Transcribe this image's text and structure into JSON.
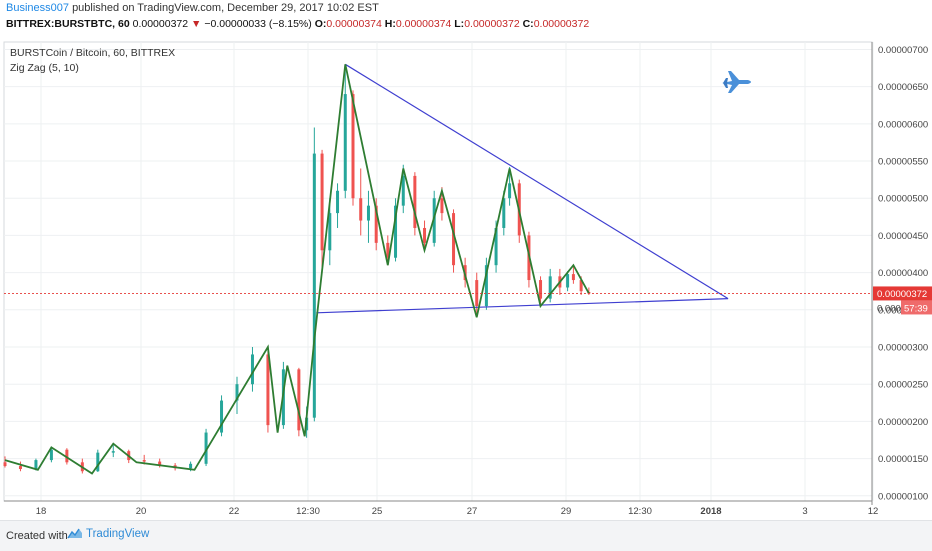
{
  "header": {
    "author": "Business007",
    "published": "published on TradingView.com, December 29, 2017 10:02 EST",
    "symbol_line": "BITTREX:BURSTBTC, 60",
    "last": "0.00000372",
    "arrow": "▼",
    "change": "−0.00000033 (−8.15%)",
    "o_label": "O:",
    "o_val": "0.00000374",
    "h_label": "H:",
    "h_val": "0.00000374",
    "l_label": "L:",
    "l_val": "0.00000372",
    "c_label": "C:",
    "c_val": "0.00000372"
  },
  "legend": {
    "title": "BURSTCoin / Bitcoin, 60, BITTREX",
    "indicator": "Zig Zag (5, 10)"
  },
  "price_badge": "0.00000372",
  "countdown_badge": "57:39",
  "price_badge_partial": "0.000",
  "footer": {
    "created": "Created with",
    "brand": "TradingView"
  },
  "icons": [
    "jet-fighter-icon",
    "tradingview-logo-icon"
  ],
  "colors": {
    "up": "#26a69a",
    "down": "#ef5350",
    "zigzag": "#2e7d32",
    "trendline": "#3f3fd0",
    "last_price": "#e53935"
  },
  "chart_data": {
    "type": "candlestick",
    "y_axis": {
      "ticks": [
        "0.00000100",
        "0.00000150",
        "0.00000200",
        "0.00000250",
        "0.00000300",
        "0.00000350",
        "0.00000400",
        "0.00000450",
        "0.00000500",
        "0.00000550",
        "0.00000600",
        "0.00000650",
        "0.00000700"
      ],
      "ylim": [
        9.3e-07,
        7.1e-06
      ]
    },
    "x_axis": {
      "ticks": [
        "18",
        "20",
        "22",
        "12:30",
        "25",
        "27",
        "29",
        "12:30",
        "2018",
        "3",
        "12"
      ]
    },
    "last_price": 3.72e-06,
    "zigzag": [
      {
        "t": "2017-12-17 00:00",
        "p": 1.48e-06
      },
      {
        "t": "2017-12-17 17:00",
        "p": 1.35e-06
      },
      {
        "t": "2017-12-18 00:00",
        "p": 1.65e-06
      },
      {
        "t": "2017-12-18 21:00",
        "p": 1.3e-06
      },
      {
        "t": "2017-12-19 08:00",
        "p": 1.7e-06
      },
      {
        "t": "2017-12-19 20:00",
        "p": 1.45e-06
      },
      {
        "t": "2017-12-21 02:00",
        "p": 1.35e-06
      },
      {
        "t": "2017-12-22 16:00",
        "p": 3e-06
      },
      {
        "t": "2017-12-22 21:00",
        "p": 1.85e-06
      },
      {
        "t": "2017-12-23 02:00",
        "p": 2.75e-06
      },
      {
        "t": "2017-12-23 11:00",
        "p": 1.8e-06
      },
      {
        "t": "2017-12-23 16:00",
        "p": 3.1e-06
      },
      {
        "t": "2017-12-24 08:00",
        "p": 6.8e-06
      },
      {
        "t": "2017-12-25 06:00",
        "p": 4.1e-06
      },
      {
        "t": "2017-12-25 14:00",
        "p": 5.4e-06
      },
      {
        "t": "2017-12-26 01:00",
        "p": 4.3e-06
      },
      {
        "t": "2017-12-26 10:00",
        "p": 5.1e-06
      },
      {
        "t": "2017-12-27 04:00",
        "p": 3.4e-06
      },
      {
        "t": "2017-12-27 21:00",
        "p": 5.4e-06
      },
      {
        "t": "2017-12-28 13:00",
        "p": 3.55e-06
      },
      {
        "t": "2017-12-29 06:00",
        "p": 4.1e-06
      },
      {
        "t": "2017-12-29 14:00",
        "p": 3.72e-06
      }
    ],
    "trendlines": [
      {
        "from": {
          "t": "2017-12-24 08:00",
          "p": 6.8e-06
        },
        "to": {
          "t": "2018-01-01 14:00",
          "p": 3.65e-06
        }
      },
      {
        "from": {
          "t": "2017-12-23 17:00",
          "p": 3.46e-06
        },
        "to": {
          "t": "2018-01-01 14:00",
          "p": 3.65e-06
        }
      }
    ],
    "candles": [
      {
        "t": "2017-12-17 00:00",
        "o": 1.45,
        "h": 1.53,
        "l": 1.38,
        "c": 1.4
      },
      {
        "t": "2017-12-17 08:00",
        "o": 1.4,
        "h": 1.46,
        "l": 1.33,
        "c": 1.36
      },
      {
        "t": "2017-12-17 16:00",
        "o": 1.36,
        "h": 1.5,
        "l": 1.34,
        "c": 1.48
      },
      {
        "t": "2017-12-18 00:00",
        "o": 1.48,
        "h": 1.66,
        "l": 1.45,
        "c": 1.62
      },
      {
        "t": "2017-12-18 08:00",
        "o": 1.62,
        "h": 1.64,
        "l": 1.42,
        "c": 1.45
      },
      {
        "t": "2017-12-18 16:00",
        "o": 1.45,
        "h": 1.5,
        "l": 1.3,
        "c": 1.33
      },
      {
        "t": "2017-12-19 00:00",
        "o": 1.33,
        "h": 1.62,
        "l": 1.32,
        "c": 1.58
      },
      {
        "t": "2017-12-19 08:00",
        "o": 1.58,
        "h": 1.7,
        "l": 1.52,
        "c": 1.6
      },
      {
        "t": "2017-12-19 16:00",
        "o": 1.6,
        "h": 1.62,
        "l": 1.44,
        "c": 1.48
      },
      {
        "t": "2017-12-20 00:00",
        "o": 1.48,
        "h": 1.55,
        "l": 1.42,
        "c": 1.46
      },
      {
        "t": "2017-12-20 08:00",
        "o": 1.46,
        "h": 1.5,
        "l": 1.38,
        "c": 1.41
      },
      {
        "t": "2017-12-20 16:00",
        "o": 1.41,
        "h": 1.44,
        "l": 1.34,
        "c": 1.37
      },
      {
        "t": "2017-12-21 00:00",
        "o": 1.37,
        "h": 1.46,
        "l": 1.33,
        "c": 1.43
      },
      {
        "t": "2017-12-21 08:00",
        "o": 1.43,
        "h": 1.9,
        "l": 1.4,
        "c": 1.85
      },
      {
        "t": "2017-12-21 16:00",
        "o": 1.85,
        "h": 2.35,
        "l": 1.8,
        "c": 2.28
      },
      {
        "t": "2017-12-22 00:00",
        "o": 2.28,
        "h": 2.6,
        "l": 2.1,
        "c": 2.5
      },
      {
        "t": "2017-12-22 08:00",
        "o": 2.5,
        "h": 3.0,
        "l": 2.4,
        "c": 2.9
      },
      {
        "t": "2017-12-22 16:00",
        "o": 2.9,
        "h": 2.95,
        "l": 1.85,
        "c": 1.95
      },
      {
        "t": "2017-12-23 00:00",
        "o": 1.95,
        "h": 2.8,
        "l": 1.9,
        "c": 2.7
      },
      {
        "t": "2017-12-23 08:00",
        "o": 2.7,
        "h": 2.72,
        "l": 1.8,
        "c": 1.88
      },
      {
        "t": "2017-12-23 12:00",
        "o": 1.88,
        "h": 2.2,
        "l": 1.78,
        "c": 2.05
      },
      {
        "t": "2017-12-23 16:00",
        "o": 2.05,
        "h": 5.95,
        "l": 2.0,
        "c": 5.6
      },
      {
        "t": "2017-12-23 20:00",
        "o": 5.6,
        "h": 5.65,
        "l": 4.0,
        "c": 4.3
      },
      {
        "t": "2017-12-24 00:00",
        "o": 4.3,
        "h": 5.0,
        "l": 4.1,
        "c": 4.8
      },
      {
        "t": "2017-12-24 04:00",
        "o": 4.8,
        "h": 5.2,
        "l": 4.6,
        "c": 5.1
      },
      {
        "t": "2017-12-24 08:00",
        "o": 5.1,
        "h": 6.8,
        "l": 5.0,
        "c": 6.4
      },
      {
        "t": "2017-12-24 12:00",
        "o": 6.4,
        "h": 6.45,
        "l": 4.9,
        "c": 5.0
      },
      {
        "t": "2017-12-24 16:00",
        "o": 5.0,
        "h": 5.4,
        "l": 4.5,
        "c": 4.7
      },
      {
        "t": "2017-12-24 20:00",
        "o": 4.7,
        "h": 5.1,
        "l": 4.4,
        "c": 4.9
      },
      {
        "t": "2017-12-25 00:00",
        "o": 4.9,
        "h": 5.0,
        "l": 4.3,
        "c": 4.4
      },
      {
        "t": "2017-12-25 06:00",
        "o": 4.4,
        "h": 4.5,
        "l": 4.1,
        "c": 4.2
      },
      {
        "t": "2017-12-25 10:00",
        "o": 4.2,
        "h": 5.0,
        "l": 4.15,
        "c": 4.9
      },
      {
        "t": "2017-12-25 14:00",
        "o": 4.9,
        "h": 5.45,
        "l": 4.8,
        "c": 5.3
      },
      {
        "t": "2017-12-25 20:00",
        "o": 5.3,
        "h": 5.35,
        "l": 4.5,
        "c": 4.6
      },
      {
        "t": "2017-12-26 01:00",
        "o": 4.6,
        "h": 4.7,
        "l": 4.3,
        "c": 4.4
      },
      {
        "t": "2017-12-26 06:00",
        "o": 4.4,
        "h": 5.1,
        "l": 4.35,
        "c": 5.0
      },
      {
        "t": "2017-12-26 10:00",
        "o": 5.0,
        "h": 5.15,
        "l": 4.7,
        "c": 4.8
      },
      {
        "t": "2017-12-26 16:00",
        "o": 4.8,
        "h": 4.85,
        "l": 4.0,
        "c": 4.1
      },
      {
        "t": "2017-12-26 22:00",
        "o": 4.1,
        "h": 4.2,
        "l": 3.8,
        "c": 3.9
      },
      {
        "t": "2017-12-27 04:00",
        "o": 3.9,
        "h": 4.0,
        "l": 3.4,
        "c": 3.55
      },
      {
        "t": "2017-12-27 09:00",
        "o": 3.55,
        "h": 4.2,
        "l": 3.5,
        "c": 4.1
      },
      {
        "t": "2017-12-27 14:00",
        "o": 4.1,
        "h": 4.7,
        "l": 4.0,
        "c": 4.6
      },
      {
        "t": "2017-12-27 18:00",
        "o": 4.6,
        "h": 5.1,
        "l": 4.5,
        "c": 5.0
      },
      {
        "t": "2017-12-27 21:00",
        "o": 5.0,
        "h": 5.42,
        "l": 4.9,
        "c": 5.2
      },
      {
        "t": "2017-12-28 02:00",
        "o": 5.2,
        "h": 5.25,
        "l": 4.4,
        "c": 4.5
      },
      {
        "t": "2017-12-28 07:00",
        "o": 4.5,
        "h": 4.55,
        "l": 3.8,
        "c": 3.9
      },
      {
        "t": "2017-12-28 13:00",
        "o": 3.9,
        "h": 3.95,
        "l": 3.55,
        "c": 3.65
      },
      {
        "t": "2017-12-28 18:00",
        "o": 3.65,
        "h": 4.05,
        "l": 3.6,
        "c": 3.95
      },
      {
        "t": "2017-12-28 23:00",
        "o": 3.95,
        "h": 4.05,
        "l": 3.7,
        "c": 3.8
      },
      {
        "t": "2017-12-29 03:00",
        "o": 3.8,
        "h": 4.02,
        "l": 3.75,
        "c": 3.98
      },
      {
        "t": "2017-12-29 06:00",
        "o": 3.98,
        "h": 4.1,
        "l": 3.85,
        "c": 3.9
      },
      {
        "t": "2017-12-29 10:00",
        "o": 3.9,
        "h": 3.95,
        "l": 3.7,
        "c": 3.75
      },
      {
        "t": "2017-12-29 14:00",
        "o": 3.74,
        "h": 3.8,
        "l": 3.7,
        "c": 3.72
      }
    ],
    "candle_price_unit": "1e-6"
  }
}
